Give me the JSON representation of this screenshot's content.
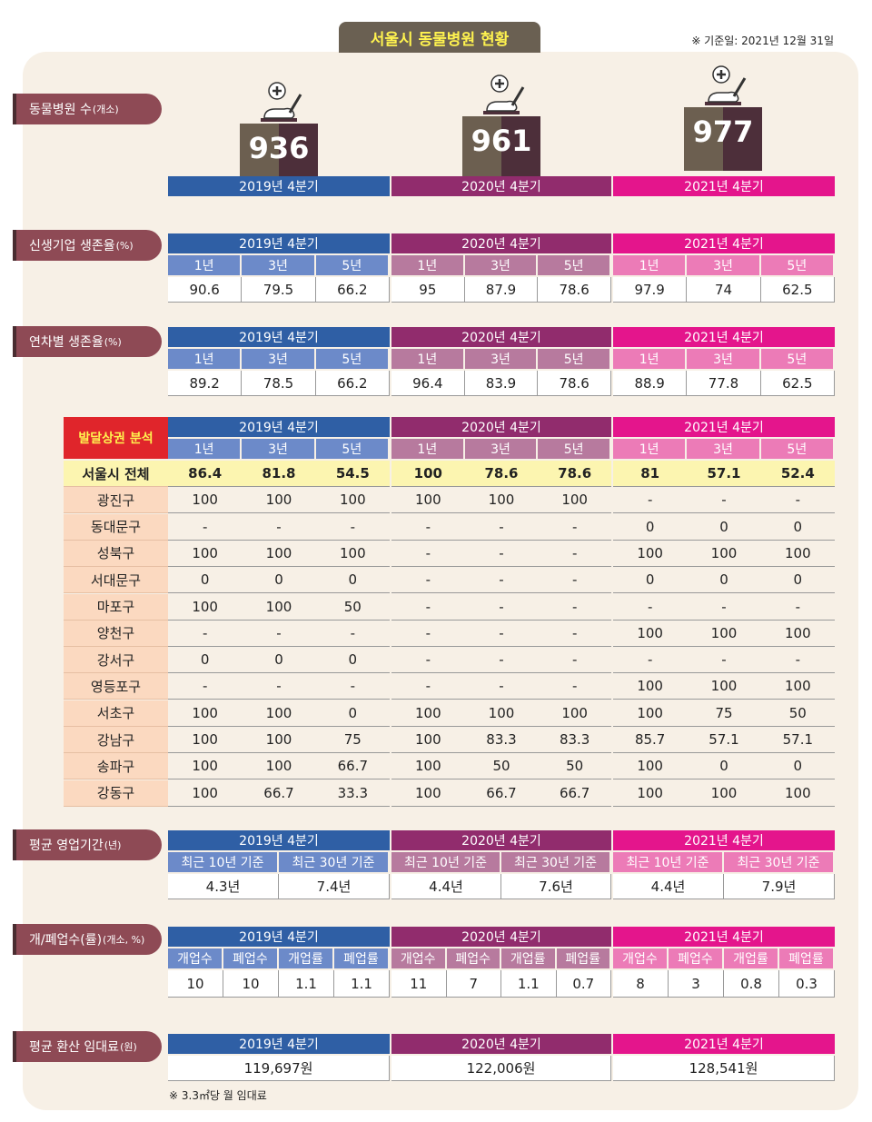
{
  "title": "서울시 동물병원 현황",
  "ref_date": "※ 기준일: 2021년 12월 31일",
  "quarters": [
    "2019년 4분기",
    "2020년 4분기",
    "2021년 4분기"
  ],
  "colors": {
    "blue": "#2f5fa5",
    "purple": "#912c6d",
    "pink": "#e4158c",
    "label_bg": "#8e4a55"
  },
  "hospitals": {
    "label": "동물병원 수",
    "unit": "(개소)",
    "counts": [
      "936",
      "961",
      "977"
    ]
  },
  "startup_survival": {
    "label": "신생기업 생존율",
    "unit": "(%)",
    "sub_headers": [
      "1년",
      "3년",
      "5년"
    ],
    "values": [
      [
        "90.6",
        "79.5",
        "66.2"
      ],
      [
        "95",
        "87.9",
        "78.6"
      ],
      [
        "97.9",
        "74",
        "62.5"
      ]
    ]
  },
  "yearly_survival": {
    "label": "연차별 생존율",
    "unit": "(%)",
    "sub_headers": [
      "1년",
      "3년",
      "5년"
    ],
    "values": [
      [
        "89.2",
        "78.5",
        "66.2"
      ],
      [
        "96.4",
        "83.9",
        "78.6"
      ],
      [
        "88.9",
        "77.8",
        "62.5"
      ]
    ]
  },
  "district": {
    "badge": "발달상권 분석",
    "sub_headers": [
      "1년",
      "3년",
      "5년"
    ],
    "total": {
      "name": "서울시 전체",
      "values": [
        "86.4",
        "81.8",
        "54.5",
        "100",
        "78.6",
        "78.6",
        "81",
        "57.1",
        "52.4"
      ]
    },
    "rows": [
      {
        "name": "광진구",
        "values": [
          "100",
          "100",
          "100",
          "100",
          "100",
          "100",
          "-",
          "-",
          "-"
        ]
      },
      {
        "name": "동대문구",
        "values": [
          "-",
          "-",
          "-",
          "-",
          "-",
          "-",
          "0",
          "0",
          "0"
        ]
      },
      {
        "name": "성북구",
        "values": [
          "100",
          "100",
          "100",
          "-",
          "-",
          "-",
          "100",
          "100",
          "100"
        ]
      },
      {
        "name": "서대문구",
        "values": [
          "0",
          "0",
          "0",
          "-",
          "-",
          "-",
          "0",
          "0",
          "0"
        ]
      },
      {
        "name": "마포구",
        "values": [
          "100",
          "100",
          "50",
          "-",
          "-",
          "-",
          "-",
          "-",
          "-"
        ]
      },
      {
        "name": "양천구",
        "values": [
          "-",
          "-",
          "-",
          "-",
          "-",
          "-",
          "100",
          "100",
          "100"
        ]
      },
      {
        "name": "강서구",
        "values": [
          "0",
          "0",
          "0",
          "-",
          "-",
          "-",
          "-",
          "-",
          "-"
        ]
      },
      {
        "name": "영등포구",
        "values": [
          "-",
          "-",
          "-",
          "-",
          "-",
          "-",
          "100",
          "100",
          "100"
        ]
      },
      {
        "name": "서초구",
        "values": [
          "100",
          "100",
          "0",
          "100",
          "100",
          "100",
          "100",
          "75",
          "50"
        ]
      },
      {
        "name": "강남구",
        "values": [
          "100",
          "100",
          "75",
          "100",
          "83.3",
          "83.3",
          "85.7",
          "57.1",
          "57.1"
        ]
      },
      {
        "name": "송파구",
        "values": [
          "100",
          "100",
          "66.7",
          "100",
          "50",
          "50",
          "100",
          "0",
          "0"
        ]
      },
      {
        "name": "강동구",
        "values": [
          "100",
          "66.7",
          "33.3",
          "100",
          "66.7",
          "66.7",
          "100",
          "100",
          "100"
        ]
      }
    ]
  },
  "operating_period": {
    "label": "평균 영업기간",
    "unit": "(년)",
    "sub_headers": [
      "최근 10년 기준",
      "최근 30년 기준"
    ],
    "values": [
      [
        "4.3년",
        "7.4년"
      ],
      [
        "4.4년",
        "7.6년"
      ],
      [
        "4.4년",
        "7.9년"
      ]
    ]
  },
  "open_close": {
    "label": "개/폐업수(률)",
    "unit": "(개소, %)",
    "sub_headers": [
      "개업수",
      "폐업수",
      "개업률",
      "폐업률"
    ],
    "values": [
      [
        "10",
        "10",
        "1.1",
        "1.1"
      ],
      [
        "11",
        "7",
        "1.1",
        "0.7"
      ],
      [
        "8",
        "3",
        "0.8",
        "0.3"
      ]
    ]
  },
  "rent": {
    "label": "평균 환산 임대료",
    "unit": "(원)",
    "values": [
      "119,697원",
      "122,006원",
      "128,541원"
    ],
    "note": "※ 3.3㎡당 월 임대료"
  }
}
